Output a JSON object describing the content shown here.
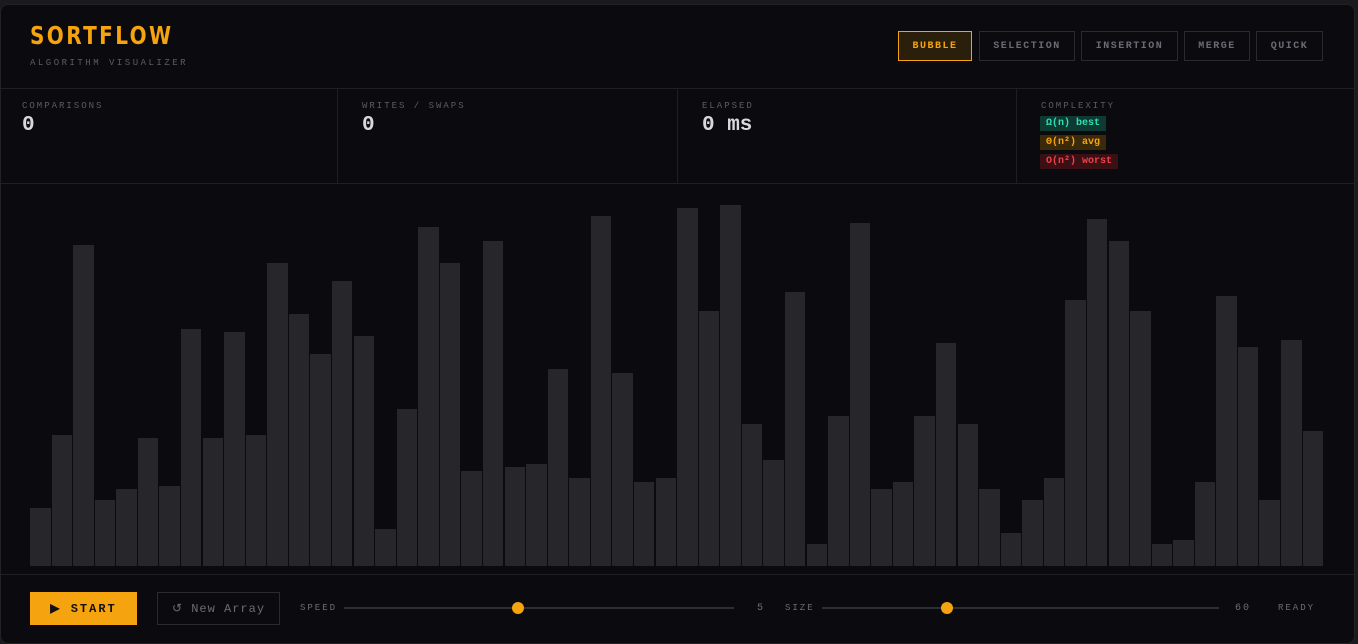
{
  "header": {
    "title": "SORTFLOW",
    "subtitle": "ALGORITHM VISUALIZER",
    "tabs": [
      "BUBBLE",
      "SELECTION",
      "INSERTION",
      "MERGE",
      "QUICK"
    ]
  },
  "stats": {
    "comparisons": {
      "label": "COMPARISONS",
      "value": 0
    },
    "writes": {
      "label": "WRITES / SWAPS",
      "value": 0
    },
    "elapsed": {
      "label": "ELAPSED",
      "value": "0 ms"
    },
    "complexity": {
      "label": "COMPLEXITY",
      "best": "Ω(n) best",
      "avg": "Θ(n²) avg",
      "worst": "O(n²) worst"
    }
  },
  "array": [
    58,
    131,
    321,
    66,
    77,
    128,
    80,
    237,
    128,
    234,
    131,
    303,
    252,
    212,
    285,
    230,
    37,
    157,
    339,
    303,
    95,
    325,
    99,
    102,
    197,
    88,
    350,
    193,
    84,
    88,
    358,
    255,
    361,
    142,
    106,
    274,
    22,
    150,
    343,
    77,
    84,
    150,
    223,
    142,
    77,
    33,
    66,
    88,
    266,
    347,
    325,
    255,
    22,
    26,
    84,
    270,
    219,
    66,
    226,
    135
  ],
  "controls": {
    "start": "▶ START",
    "new_array": "↺ New Array",
    "speed_label": "SPEED",
    "speed": 5,
    "size_label": "SIZE",
    "size": 60,
    "status": "READY"
  }
}
